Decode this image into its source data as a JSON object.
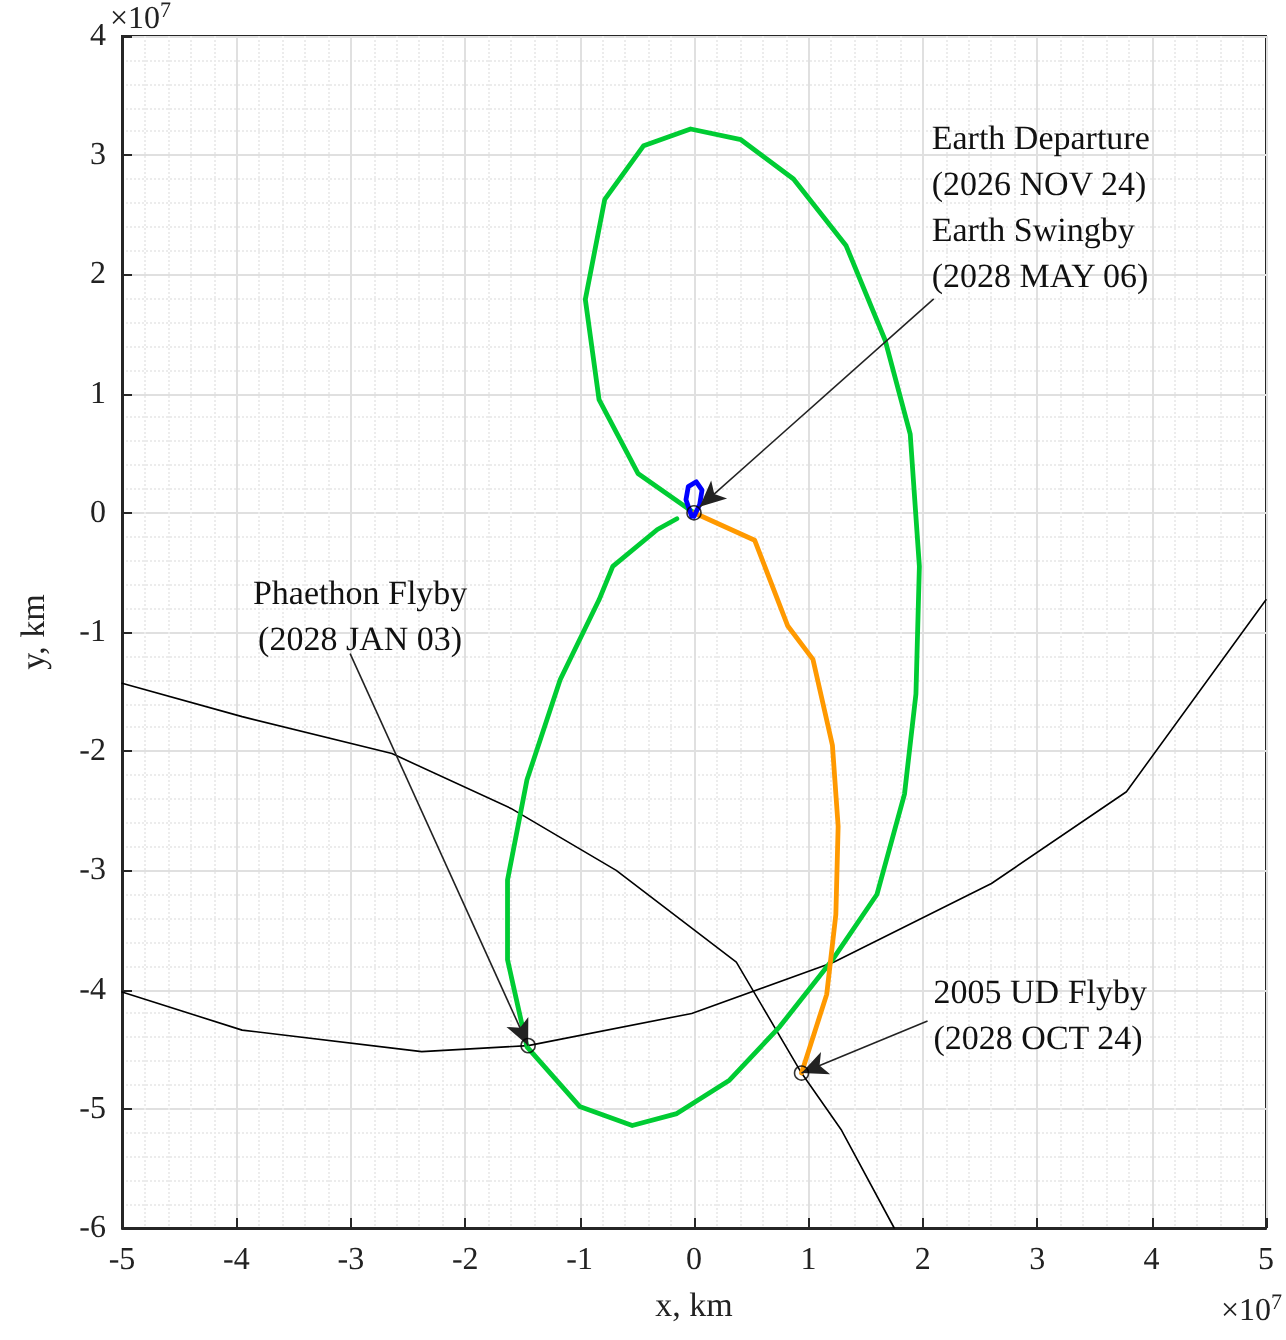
{
  "chart_data": {
    "type": "line",
    "xlabel": "x, km",
    "ylabel": "y, km",
    "xlim": [
      -5,
      5
    ],
    "ylim": [
      -6,
      4
    ],
    "xticks": [
      -5,
      -4,
      -3,
      -2,
      -1,
      0,
      1,
      2,
      3,
      4,
      5
    ],
    "yticks": [
      -6,
      -5,
      -4,
      -3,
      -2,
      -1,
      0,
      1,
      2,
      3,
      4
    ],
    "grid": true,
    "marker": "none",
    "annotations": [
      "×10$^{7}$",
      "×10$^{7}$",
      {
        "text": "Earth Departure\n(2026 NOV 24)\nEarth Swingby\n(2028 MAY 06)",
        "x": 0.05,
        "y": 0.05
      },
      {
        "text": "Phaethon Flyby\n(2028 JAN 03)",
        "x": -1.45,
        "y": -4.47
      },
      {
        "text": "2005 UD Flyby\n(2028 OCT 24)",
        "x": 0.94,
        "y": -4.7
      }
    ],
    "series": [
      {
        "color": "#000000",
        "x": [
          -5,
          -3.95,
          -2.38,
          -1.45,
          -0.02,
          1.22,
          2.6,
          3.78,
          5
        ],
        "values": [
          -4.02,
          -4.34,
          -4.52,
          -4.47,
          -4.2,
          -3.77,
          -3.11,
          -2.34,
          -0.73
        ]
      },
      {
        "color": "#000000",
        "x": [
          -5,
          -3.95,
          -2.64,
          -1.6,
          -0.68,
          0.37,
          0.94,
          1.29,
          1.75
        ],
        "values": [
          -1.43,
          -1.71,
          -2.02,
          -2.48,
          -3.0,
          -3.77,
          -4.7,
          -5.18,
          -6.0
        ]
      },
      {
        "color": "#00cc33",
        "x": [
          0,
          -0.49,
          -0.83,
          -0.95,
          -0.78,
          -0.44,
          -0.03,
          0.41,
          0.87,
          1.33,
          1.67,
          1.89,
          1.97,
          1.94,
          1.84,
          1.6,
          1.21,
          0.75,
          0.31,
          -0.15,
          -0.54,
          -1.0,
          -1.46,
          -1.63,
          -1.63,
          -1.46,
          -1.17,
          -0.83,
          -0.71,
          -0.32,
          -0.15
        ],
        "values": [
          0,
          0.33,
          0.95,
          1.79,
          2.63,
          3.08,
          3.22,
          3.13,
          2.8,
          2.24,
          1.45,
          0.66,
          -0.45,
          -1.52,
          -2.36,
          -3.2,
          -3.75,
          -4.31,
          -4.76,
          -5.04,
          -5.14,
          -4.98,
          -4.48,
          -3.75,
          -3.08,
          -2.24,
          -1.4,
          -0.73,
          -0.45,
          -0.14,
          -0.05
        ]
      },
      {
        "color": "#ff9900",
        "x": [
          0,
          0.53,
          0.82,
          1.04,
          1.21,
          1.26,
          1.24,
          1.16,
          0.94
        ],
        "values": [
          0,
          -0.23,
          -0.95,
          -1.23,
          -1.95,
          -2.63,
          -3.37,
          -4.04,
          -4.7
        ]
      },
      {
        "color": "#0000ff",
        "x": [
          -0.02,
          -0.07,
          -0.05,
          0.02,
          0.07,
          0.05,
          0.0
        ],
        "values": [
          -0.03,
          0.11,
          0.22,
          0.26,
          0.19,
          0.07,
          -0.03
        ]
      },
      {
        "type": "scatter",
        "marker": "circle",
        "color": "#000000",
        "x": [
          0,
          -1.45,
          0.94
        ],
        "values": [
          0,
          -4.47,
          -4.7
        ]
      }
    ]
  }
}
